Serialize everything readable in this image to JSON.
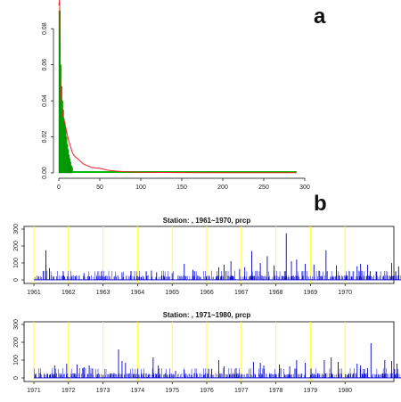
{
  "panel_labels": {
    "a": "a",
    "b": "b"
  },
  "colors": {
    "histogram": "#00bb00",
    "density": "#ee2222",
    "precip": "#0000cc",
    "year_line": "#ffff33"
  },
  "chart_data": [
    {
      "type": "bar",
      "panel": "a",
      "title": "",
      "xlabel": "",
      "ylabel": "",
      "xlim": [
        0,
        300
      ],
      "ylim": [
        0,
        0.09
      ],
      "xticks": [
        0,
        50,
        100,
        150,
        200,
        250,
        300
      ],
      "yticks": [
        0.0,
        0.02,
        0.04,
        0.06,
        0.08
      ],
      "ytick_labels": [
        "0.00",
        "0.02",
        "0.04",
        "0.06",
        "0.08"
      ],
      "bin_width": 1,
      "bins": [
        0,
        1,
        2,
        3,
        4,
        5,
        6,
        7,
        8,
        9,
        10,
        11,
        12,
        13,
        14,
        15,
        16
      ],
      "values": [
        0.09,
        0.09,
        0.06,
        0.048,
        0.04,
        0.035,
        0.03,
        0.028,
        0.025,
        0.02,
        0.016,
        0.013,
        0.01,
        0.008,
        0.006,
        0.004,
        0.003
      ],
      "density_curve": {
        "x": [
          0,
          1,
          2,
          3,
          4,
          5,
          6,
          8,
          10,
          12,
          14,
          16,
          18,
          20,
          25,
          30,
          35,
          40,
          50,
          60,
          70,
          80,
          100,
          150,
          200,
          250,
          290
        ],
        "y": [
          0.093,
          0.096,
          0.05,
          0.042,
          0.036,
          0.032,
          0.03,
          0.026,
          0.022,
          0.018,
          0.015,
          0.012,
          0.01,
          0.009,
          0.007,
          0.005,
          0.004,
          0.003,
          0.0025,
          0.0015,
          0.001,
          0.0007,
          0.0004,
          0.0002,
          0.0001,
          0.0001,
          0.0001
        ]
      }
    },
    {
      "type": "bar",
      "panel": "b",
      "title": "Station: , 1961~1970,  prcp",
      "xlabel": "",
      "ylabel": "",
      "ylim": [
        0,
        300
      ],
      "yticks": [
        0,
        100,
        200,
        300
      ],
      "ytick_labels": [
        "0",
        "100",
        "200",
        "300"
      ],
      "year_ticks": [
        "1961",
        "1962",
        "1963",
        "1964",
        "1965",
        "1966",
        "1967",
        "1968",
        "1969",
        "1970"
      ],
      "peaks": [
        {
          "t": 0.35,
          "v": 90
        },
        {
          "t": 0.35,
          "v": 175
        },
        {
          "t": 0.45,
          "v": 70
        },
        {
          "t": 1.45,
          "v": 40
        },
        {
          "t": 2.55,
          "v": 45
        },
        {
          "t": 3.4,
          "v": 55
        },
        {
          "t": 3.55,
          "v": 45
        },
        {
          "t": 4.0,
          "v": 40
        },
        {
          "t": 4.35,
          "v": 95
        },
        {
          "t": 4.6,
          "v": 60
        },
        {
          "t": 5.35,
          "v": 75
        },
        {
          "t": 5.5,
          "v": 90
        },
        {
          "t": 5.7,
          "v": 110
        },
        {
          "t": 5.95,
          "v": 65
        },
        {
          "t": 6.1,
          "v": 75
        },
        {
          "t": 6.3,
          "v": 170
        },
        {
          "t": 6.55,
          "v": 100
        },
        {
          "t": 6.75,
          "v": 140
        },
        {
          "t": 6.95,
          "v": 85
        },
        {
          "t": 7.3,
          "v": 275
        },
        {
          "t": 7.45,
          "v": 110
        },
        {
          "t": 7.6,
          "v": 120
        },
        {
          "t": 7.85,
          "v": 95
        },
        {
          "t": 8.1,
          "v": 90
        },
        {
          "t": 8.45,
          "v": 175
        },
        {
          "t": 8.75,
          "v": 85
        },
        {
          "t": 9.35,
          "v": 80
        },
        {
          "t": 9.45,
          "v": 95
        },
        {
          "t": 9.65,
          "v": 90
        },
        {
          "t": 9.9,
          "v": 50
        },
        {
          "t": 10.35,
          "v": 100
        },
        {
          "t": 10.55,
          "v": 80
        }
      ]
    },
    {
      "type": "bar",
      "panel": "b",
      "title": "Station: , 1971~1980,  prcp",
      "xlabel": "",
      "ylabel": "",
      "ylim": [
        0,
        300
      ],
      "yticks": [
        0,
        100,
        200,
        300
      ],
      "ytick_labels": [
        "0",
        "100",
        "200",
        "300"
      ],
      "year_ticks": [
        "1971",
        "1972",
        "1973",
        "1974",
        "1975",
        "1976",
        "1977",
        "1978",
        "1979",
        "1980"
      ],
      "peaks": [
        {
          "t": 0.6,
          "v": 70
        },
        {
          "t": 0.95,
          "v": 80
        },
        {
          "t": 1.25,
          "v": 75
        },
        {
          "t": 1.45,
          "v": 60
        },
        {
          "t": 1.6,
          "v": 70
        },
        {
          "t": 2.45,
          "v": 160
        },
        {
          "t": 2.55,
          "v": 95
        },
        {
          "t": 2.65,
          "v": 85
        },
        {
          "t": 3.45,
          "v": 115
        },
        {
          "t": 3.6,
          "v": 70
        },
        {
          "t": 4.1,
          "v": 40
        },
        {
          "t": 4.35,
          "v": 45
        },
        {
          "t": 5.35,
          "v": 100
        },
        {
          "t": 5.5,
          "v": 65
        },
        {
          "t": 5.85,
          "v": 55
        },
        {
          "t": 6.35,
          "v": 90
        },
        {
          "t": 6.55,
          "v": 85
        },
        {
          "t": 6.65,
          "v": 70
        },
        {
          "t": 7.1,
          "v": 75
        },
        {
          "t": 7.4,
          "v": 65
        },
        {
          "t": 7.6,
          "v": 100
        },
        {
          "t": 7.85,
          "v": 85
        },
        {
          "t": 8.4,
          "v": 100
        },
        {
          "t": 8.6,
          "v": 115
        },
        {
          "t": 8.8,
          "v": 90
        },
        {
          "t": 9.35,
          "v": 80
        },
        {
          "t": 9.45,
          "v": 70
        },
        {
          "t": 9.65,
          "v": 55
        },
        {
          "t": 9.75,
          "v": 195
        },
        {
          "t": 10.15,
          "v": 100
        },
        {
          "t": 10.35,
          "v": 95
        },
        {
          "t": 10.5,
          "v": 80
        },
        {
          "t": 10.7,
          "v": 70
        },
        {
          "t": 10.85,
          "v": 55
        }
      ]
    }
  ]
}
